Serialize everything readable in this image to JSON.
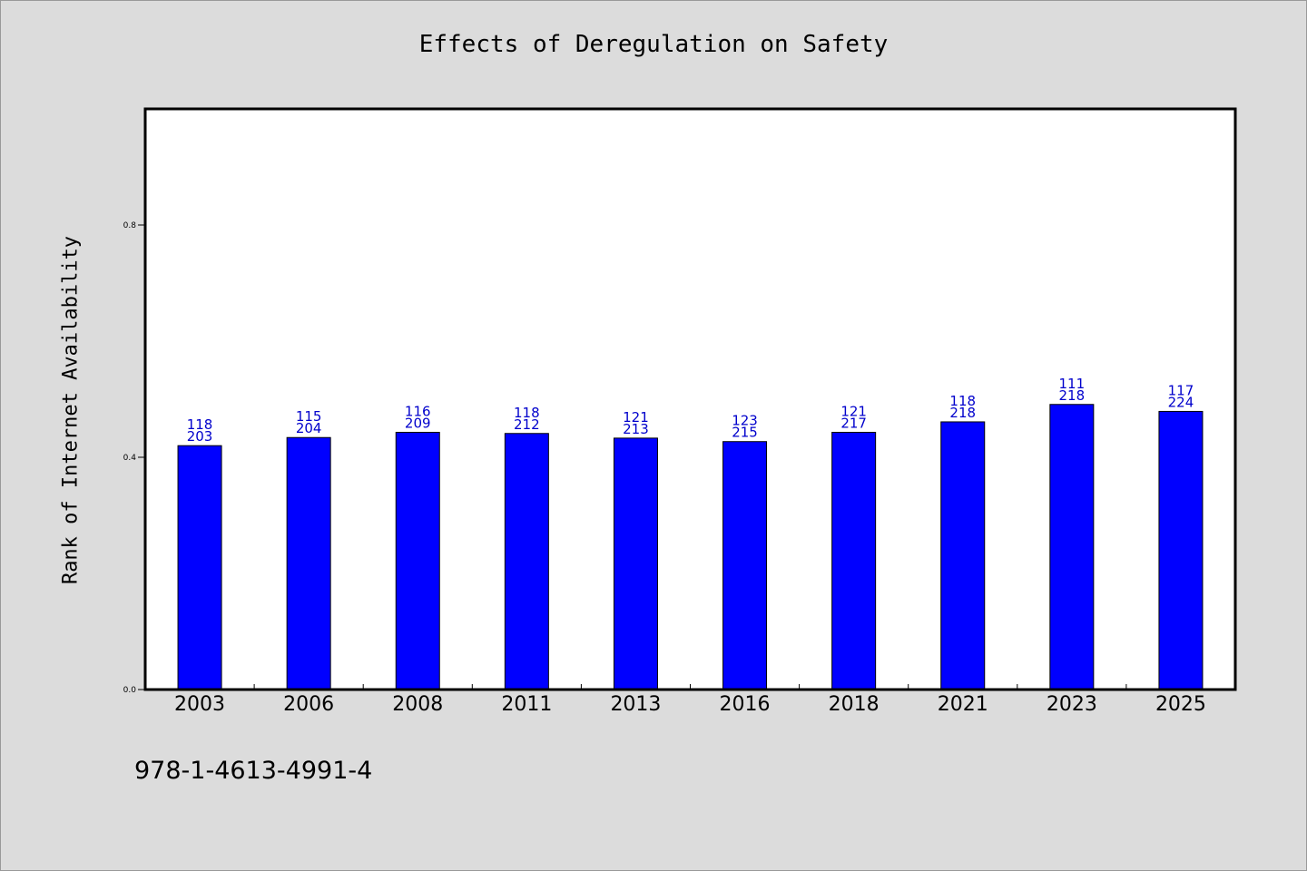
{
  "chart_data": {
    "type": "bar",
    "title": "Effects of Deregulation on Safety",
    "xlabel": "",
    "ylabel": "Rank of Internet Availability",
    "categories": [
      "2003",
      "2006",
      "2008",
      "2011",
      "2013",
      "2016",
      "2018",
      "2021",
      "2023",
      "2025"
    ],
    "values": [
      0.42,
      0.434,
      0.443,
      0.441,
      0.433,
      0.427,
      0.443,
      0.461,
      0.491,
      0.479
    ],
    "labels_top": [
      "118",
      "115",
      "116",
      "118",
      "121",
      "123",
      "121",
      "118",
      "111",
      "117"
    ],
    "labels_bottom": [
      "203",
      "204",
      "209",
      "212",
      "213",
      "215",
      "217",
      "218",
      "218",
      "224"
    ],
    "yticks": [
      "0.0",
      "0.4",
      "0.8"
    ],
    "ylim": [
      0,
      1.0
    ],
    "grid": false,
    "legend": "none",
    "colors": {
      "bar": "#0000ff",
      "label": "#0000cc",
      "background": "#dcdcdc",
      "plot": "#ffffff"
    }
  },
  "footer": {
    "code": "978-1-4613-4991-4"
  }
}
